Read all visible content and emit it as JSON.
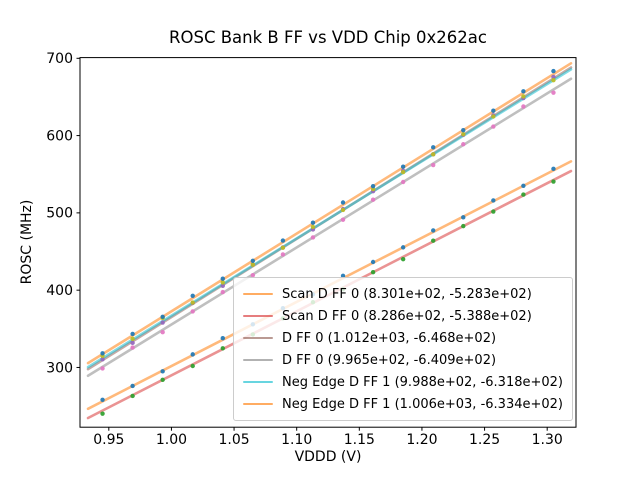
{
  "figure": {
    "background": "#ffffff",
    "spine_color": "#000000",
    "legend_border_color": "#cccccc"
  },
  "chart_data": {
    "type": "scatter",
    "title": "ROSC Bank B FF vs VDD Chip 0x262ac",
    "xlabel": "VDDD (V)",
    "ylabel": "ROSC (MHz)",
    "xlim": [
      0.927,
      1.323
    ],
    "ylim": [
      222.7,
      700.9
    ],
    "x_tick_values": [
      0.95,
      1.0,
      1.05,
      1.1,
      1.15,
      1.2,
      1.25,
      1.3
    ],
    "x_tick_labels": [
      "0.95",
      "1.00",
      "1.05",
      "1.10",
      "1.15",
      "1.20",
      "1.25",
      "1.30"
    ],
    "y_tick_values": [
      300,
      400,
      500,
      600,
      700
    ],
    "y_tick_labels": [
      "300",
      "400",
      "500",
      "600",
      "700"
    ],
    "grid": false,
    "legend_position": "lower right",
    "x": [
      0.945,
      0.969,
      0.993,
      1.017,
      1.041,
      1.065,
      1.089,
      1.113,
      1.137,
      1.161,
      1.185,
      1.209,
      1.233,
      1.257,
      1.281,
      1.305
    ],
    "fit_line_x_range": [
      0.9334,
      1.319
    ],
    "series": [
      {
        "label": "Scan D FF 0 (8.301e+02, -5.283e+02)",
        "slope": 830.1,
        "intercept": -528.3,
        "line_color": "#ff7f0e",
        "line_alpha": 0.55,
        "marker_color": "#1f77b4",
        "residuals": [
          2,
          0,
          -1,
          1,
          2,
          0,
          1,
          -1,
          3,
          1,
          0,
          2,
          -1,
          1,
          0,
          2
        ]
      },
      {
        "label": "Scan D FF 0 (8.286e+02, -5.388e+02)",
        "slope": 828.6,
        "intercept": -538.8,
        "line_color": "#d62728",
        "line_alpha": 0.5,
        "marker_color": "#2ca02c",
        "residuals": [
          -4,
          -1,
          0,
          -2,
          1,
          -1,
          0,
          1,
          -2,
          0,
          -3,
          1,
          0,
          -1,
          1,
          -2
        ]
      },
      {
        "label": "D FF 0 (1.012e+03, -6.468e+02)",
        "slope": 1012.0,
        "intercept": -646.8,
        "line_color": "#8c564b",
        "line_alpha": 0.5,
        "marker_color": "#9467bd",
        "residuals": [
          1,
          -2,
          0,
          1,
          -1,
          2,
          0,
          -1,
          1,
          0,
          2,
          -1,
          0,
          1,
          -1,
          2
        ]
      },
      {
        "label": "D FF 0 (9.965e+02, -6.409e+02)",
        "slope": 996.5,
        "intercept": -640.9,
        "line_color": "#7f7f7f",
        "line_alpha": 0.5,
        "marker_color": "#e377c2",
        "residuals": [
          -2,
          1,
          -3,
          0,
          1,
          -1,
          2,
          0,
          -1,
          1,
          0,
          -2,
          1,
          0,
          2,
          -4
        ]
      },
      {
        "label": "Neg Edge D FF 1 (9.988e+02, -6.318e+02)",
        "slope": 998.8,
        "intercept": -631.8,
        "line_color": "#17becf",
        "line_alpha": 0.55,
        "marker_color": "#bcbd22",
        "residuals": [
          3,
          1,
          4,
          0,
          2,
          1,
          -1,
          2,
          0,
          3,
          1,
          0,
          2,
          1,
          3,
          0
        ]
      },
      {
        "label": "Neg Edge D FF 1 (1.006e+03, -6.334e+02)",
        "slope": 1006.0,
        "intercept": -633.4,
        "line_color": "#ff7f0e",
        "line_alpha": 0.55,
        "marker_color": "#1f77b4",
        "residuals": [
          1,
          2,
          0,
          3,
          1,
          0,
          2,
          1,
          3,
          0,
          1,
          2,
          0,
          1,
          2,
          4
        ]
      }
    ]
  }
}
